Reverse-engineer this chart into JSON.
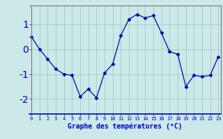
{
  "x": [
    0,
    1,
    2,
    3,
    4,
    5,
    6,
    7,
    8,
    9,
    10,
    11,
    12,
    13,
    14,
    15,
    16,
    17,
    18,
    19,
    20,
    21,
    22,
    23
  ],
  "y": [
    0.5,
    0.0,
    -0.4,
    -0.8,
    -1.0,
    -1.05,
    -1.9,
    -1.6,
    -1.95,
    -0.95,
    -0.6,
    0.55,
    1.2,
    1.4,
    1.25,
    1.35,
    0.65,
    -0.1,
    -0.2,
    -1.5,
    -1.05,
    -1.1,
    -1.05,
    -0.3
  ],
  "line_color": "#0000aa",
  "marker": "D",
  "marker_size": 2.5,
  "bg_color": "#cce8e8",
  "grid_color": "#aacccc",
  "xlabel": "Graphe des températures (°C)",
  "xlabel_color": "#0000cc",
  "ylabel_ticks": [
    -2,
    -1,
    0,
    1
  ],
  "ylim": [
    -2.6,
    1.75
  ],
  "xlim": [
    -0.3,
    23.3
  ],
  "xtick_labels": [
    "0",
    "1",
    "2",
    "3",
    "4",
    "5",
    "6",
    "7",
    "8",
    "9",
    "10",
    "11",
    "12",
    "13",
    "14",
    "15",
    "16",
    "17",
    "18",
    "19",
    "20",
    "21",
    "22",
    "23"
  ],
  "tick_color": "#0000bb",
  "axis_color": "#0000bb",
  "spine_color": "#777777",
  "ytick_fontsize": 7,
  "xtick_fontsize": 5,
  "xlabel_fontsize": 7
}
